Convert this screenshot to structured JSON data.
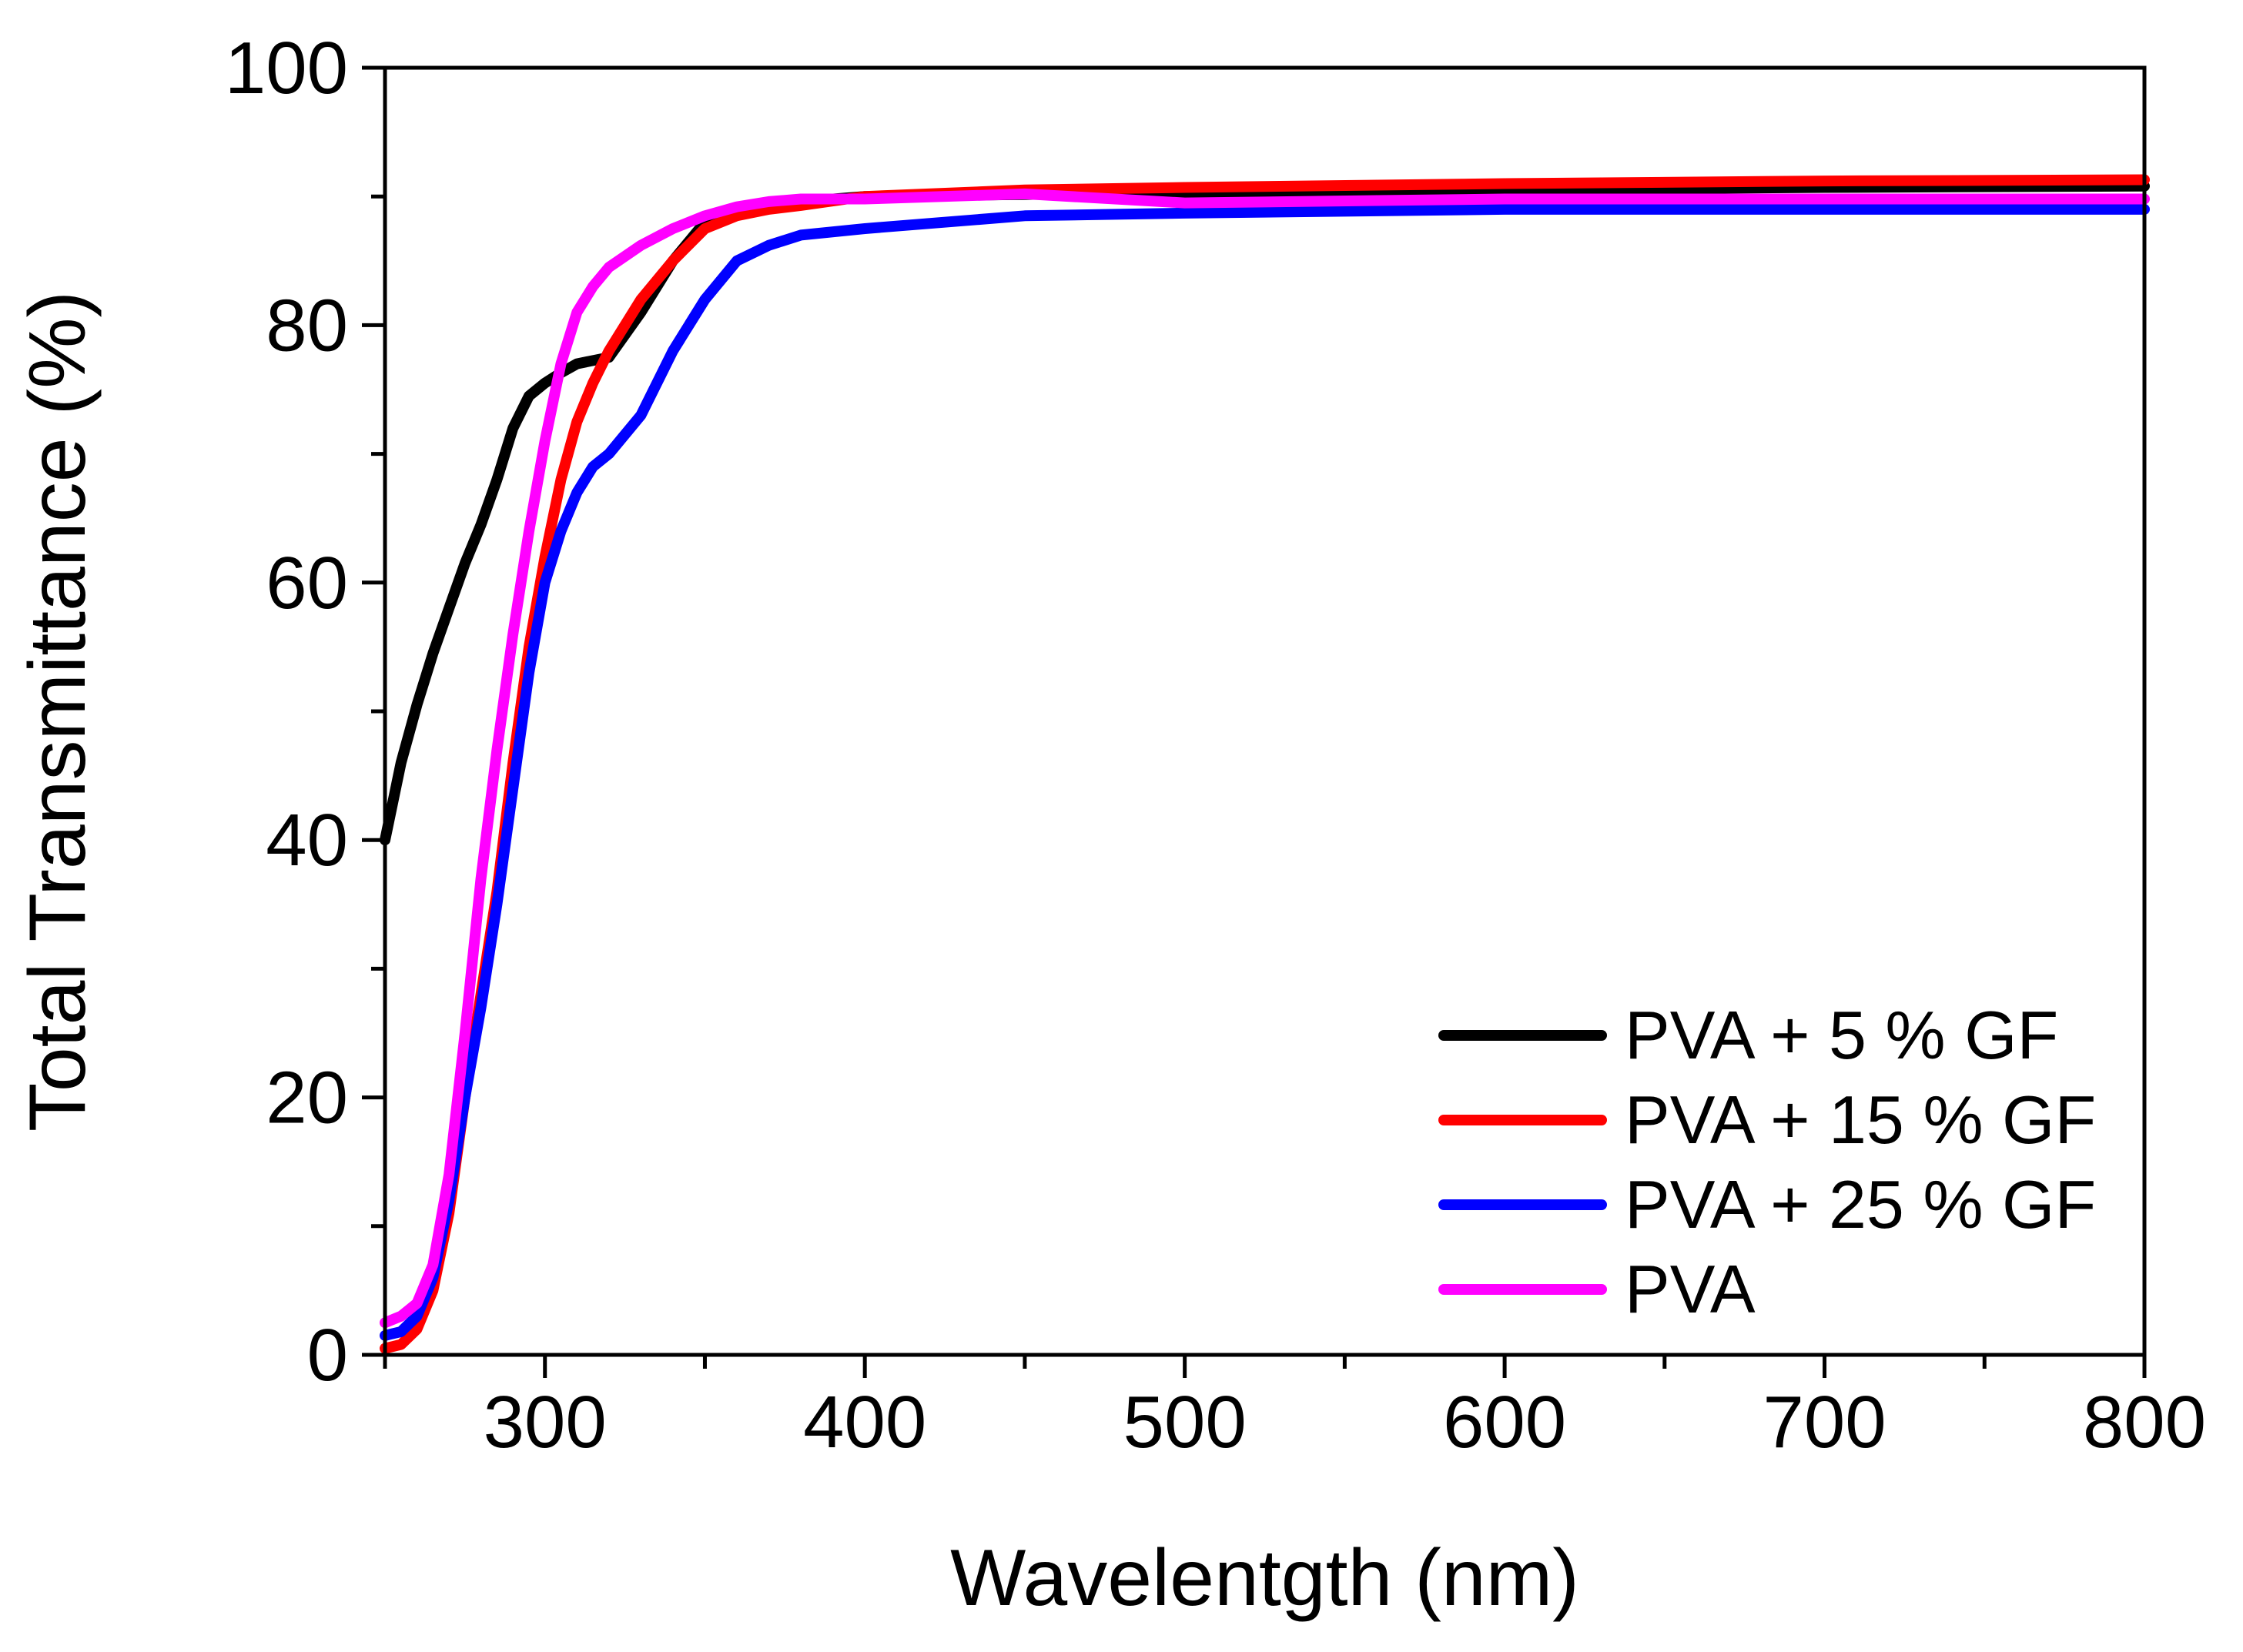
{
  "chart_data": {
    "type": "line",
    "title": "",
    "xlabel": "Wavelentgth (nm)",
    "ylabel": "Total Transmittance (%)",
    "xlim": [
      250,
      800
    ],
    "ylim": [
      0,
      100
    ],
    "x_ticks": [
      300,
      400,
      500,
      600,
      700,
      800
    ],
    "x_tick_labels": [
      "300",
      "400",
      "500",
      "600",
      "700",
      "800"
    ],
    "y_ticks": [
      0,
      20,
      40,
      60,
      80,
      100
    ],
    "y_tick_labels": [
      "0",
      "20",
      "40",
      "60",
      "80",
      "100"
    ],
    "grid": false,
    "legend_position": "bottom-right",
    "series": [
      {
        "name": "PVA + 5 % GF",
        "color": "#000000",
        "points": [
          [
            250,
            40
          ],
          [
            255,
            46
          ],
          [
            260,
            50.5
          ],
          [
            265,
            54.5
          ],
          [
            270,
            58
          ],
          [
            275,
            61.5
          ],
          [
            280,
            64.5
          ],
          [
            285,
            68
          ],
          [
            290,
            72
          ],
          [
            295,
            74.5
          ],
          [
            300,
            75.5
          ],
          [
            305,
            76.3
          ],
          [
            310,
            77
          ],
          [
            320,
            77.5
          ],
          [
            330,
            81
          ],
          [
            340,
            85
          ],
          [
            350,
            88
          ],
          [
            360,
            89
          ],
          [
            370,
            89.3
          ],
          [
            380,
            89.6
          ],
          [
            400,
            90
          ],
          [
            500,
            90.3
          ],
          [
            600,
            90.5
          ],
          [
            700,
            90.7
          ],
          [
            800,
            90.8
          ]
        ]
      },
      {
        "name": "PVA + 15 % GF",
        "color": "#ff0000",
        "points": [
          [
            250,
            0.5
          ],
          [
            255,
            0.8
          ],
          [
            260,
            2
          ],
          [
            265,
            5
          ],
          [
            270,
            11
          ],
          [
            275,
            20
          ],
          [
            280,
            28
          ],
          [
            285,
            36
          ],
          [
            290,
            46
          ],
          [
            295,
            55
          ],
          [
            300,
            62
          ],
          [
            305,
            68
          ],
          [
            310,
            72.5
          ],
          [
            315,
            75.5
          ],
          [
            320,
            78
          ],
          [
            330,
            82
          ],
          [
            340,
            85
          ],
          [
            350,
            87.5
          ],
          [
            360,
            88.5
          ],
          [
            370,
            89
          ],
          [
            380,
            89.3
          ],
          [
            400,
            90
          ],
          [
            450,
            90.5
          ],
          [
            500,
            90.7
          ],
          [
            600,
            91
          ],
          [
            700,
            91.2
          ],
          [
            800,
            91.3
          ]
        ]
      },
      {
        "name": "PVA + 25 % GF",
        "color": "#0000ff",
        "points": [
          [
            250,
            1.5
          ],
          [
            255,
            1.8
          ],
          [
            260,
            3
          ],
          [
            265,
            6
          ],
          [
            270,
            12
          ],
          [
            275,
            20
          ],
          [
            280,
            27
          ],
          [
            285,
            35
          ],
          [
            290,
            44
          ],
          [
            295,
            53
          ],
          [
            300,
            60
          ],
          [
            305,
            64
          ],
          [
            310,
            67
          ],
          [
            315,
            69
          ],
          [
            320,
            70
          ],
          [
            330,
            73
          ],
          [
            340,
            78
          ],
          [
            350,
            82
          ],
          [
            360,
            85
          ],
          [
            370,
            86.2
          ],
          [
            380,
            87
          ],
          [
            400,
            87.5
          ],
          [
            450,
            88.5
          ],
          [
            500,
            88.7
          ],
          [
            600,
            89
          ],
          [
            700,
            89
          ],
          [
            800,
            89
          ]
        ]
      },
      {
        "name": "PVA",
        "color": "#ff00ff",
        "points": [
          [
            250,
            2.5
          ],
          [
            255,
            3
          ],
          [
            260,
            4
          ],
          [
            265,
            7
          ],
          [
            270,
            14
          ],
          [
            275,
            25
          ],
          [
            280,
            37
          ],
          [
            285,
            47
          ],
          [
            290,
            56
          ],
          [
            295,
            64
          ],
          [
            300,
            71
          ],
          [
            305,
            77
          ],
          [
            310,
            81
          ],
          [
            315,
            83
          ],
          [
            320,
            84.5
          ],
          [
            330,
            86.2
          ],
          [
            340,
            87.5
          ],
          [
            350,
            88.5
          ],
          [
            360,
            89.2
          ],
          [
            370,
            89.6
          ],
          [
            380,
            89.8
          ],
          [
            400,
            89.8
          ],
          [
            450,
            90.2
          ],
          [
            500,
            89.5
          ],
          [
            600,
            89.8
          ],
          [
            700,
            89.8
          ],
          [
            800,
            89.8
          ]
        ]
      }
    ]
  }
}
